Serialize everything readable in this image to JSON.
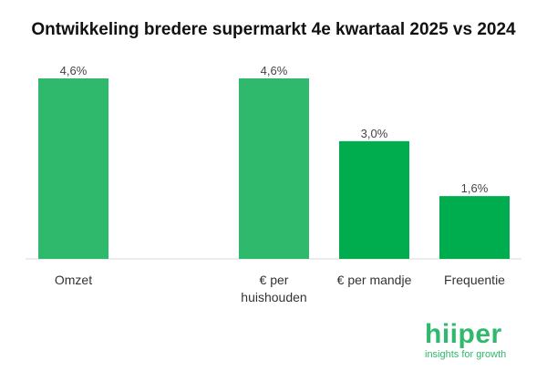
{
  "chart_data": {
    "type": "bar",
    "title": "Ontwikkeling bredere supermarkt 4e kwartaal 2025 vs 2024",
    "categories": [
      "Omzet",
      "",
      "€ per\nhuishouden",
      "€ per mandje",
      "Frequentie"
    ],
    "values": [
      4.6,
      null,
      4.6,
      3.0,
      1.6
    ],
    "value_labels": [
      "4,6%",
      "",
      "4,6%",
      "3,0%",
      "1,6%"
    ],
    "bar_colors": [
      "#2fb96c",
      null,
      "#2fb96c",
      "#00ad4e",
      "#00ad4e"
    ],
    "ylim": [
      0,
      4.6
    ],
    "grid": false,
    "legend": "none"
  },
  "logo": {
    "word": "hiiper",
    "tagline": "insights for growth",
    "color": "#2fb96c"
  }
}
